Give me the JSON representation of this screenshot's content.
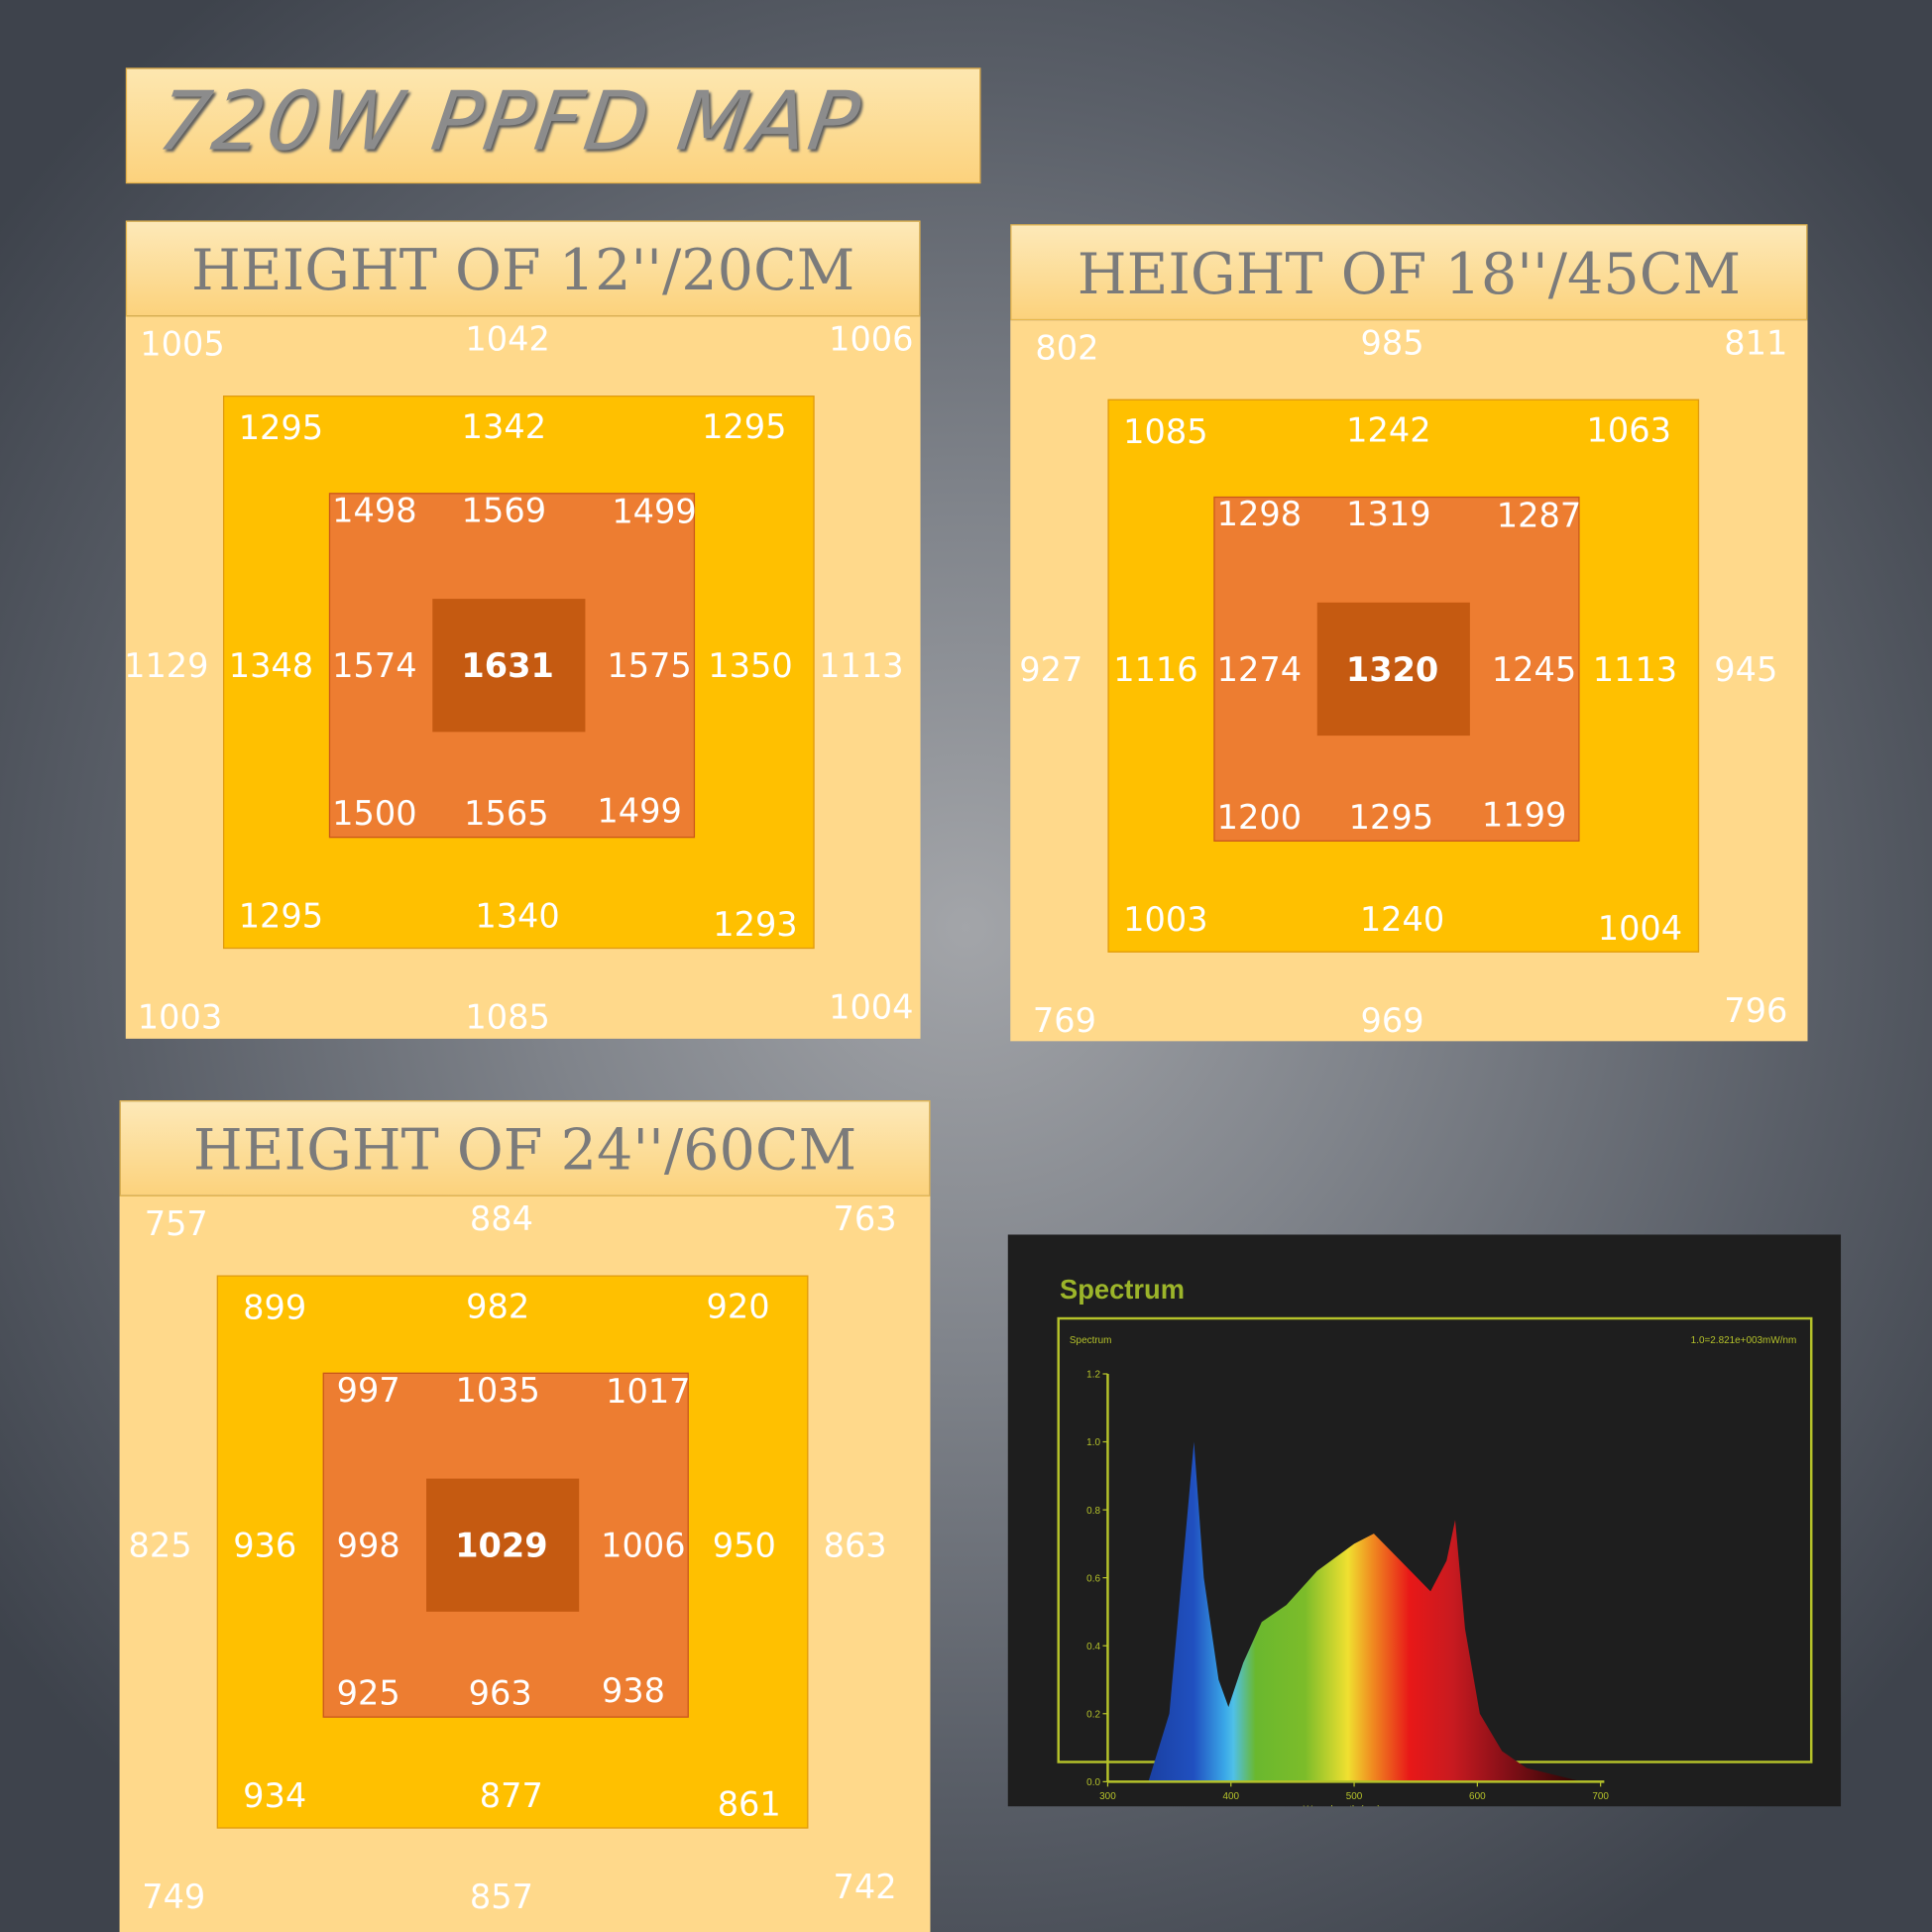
{
  "title": "720W PPFD MAP",
  "maps": [
    {
      "heading": "HEIGHT OF 12''/20CM",
      "outer": {
        "tl": "1005",
        "t": "1042",
        "tr": "1006",
        "l": "1129",
        "r": "1113",
        "bl": "1003",
        "b": "1085",
        "br": "1004"
      },
      "middle": {
        "tl": "1295",
        "t": "1342",
        "tr": "1295",
        "l": "1348",
        "r": "1350",
        "bl": "1295",
        "b": "1340",
        "br": "1293"
      },
      "inner": {
        "tl": "1498",
        "t": "1569",
        "tr": "1499",
        "l": "1574",
        "r": "1575",
        "bl": "1500",
        "b": "1565",
        "br": "1499"
      },
      "center": "1631"
    },
    {
      "heading": "HEIGHT OF 18''/45CM",
      "outer": {
        "tl": "802",
        "t": "985",
        "tr": "811",
        "l": "927",
        "r": "945",
        "bl": "769",
        "b": "969",
        "br": "796"
      },
      "middle": {
        "tl": "1085",
        "t": "1242",
        "tr": "1063",
        "l": "1116",
        "r": "1113",
        "bl": "1003",
        "b": "1240",
        "br": "1004"
      },
      "inner": {
        "tl": "1298",
        "t": "1319",
        "tr": "1287",
        "l": "1274",
        "r": "1245",
        "bl": "1200",
        "b": "1295",
        "br": "1199"
      },
      "center": "1320"
    },
    {
      "heading": "HEIGHT OF 24''/60CM",
      "outer": {
        "tl": "757",
        "t": "884",
        "tr": "763",
        "l": "825",
        "r": "863",
        "bl": "749",
        "b": "857",
        "br": "742"
      },
      "middle": {
        "tl": "899",
        "t": "982",
        "tr": "920",
        "l": "936",
        "r": "950",
        "bl": "934",
        "b": "877",
        "br": "861"
      },
      "inner": {
        "tl": "997",
        "t": "1035",
        "tr": "1017",
        "l": "998",
        "r": "1006",
        "bl": "925",
        "b": "963",
        "br": "938"
      },
      "center": "1029"
    }
  ],
  "colors": {
    "outer": "#ffd98b",
    "middle": "#ffc000",
    "inner": "#ed7d31",
    "center": "#c55a11"
  },
  "chart_data": {
    "type": "area",
    "title": "Spectrum",
    "subtitle": "Spectrum",
    "annotation": "1.0=2.821e+003mW/nm",
    "xlabel": "Wave length (nm)",
    "ylabel": "",
    "xlim": [
      300,
      700
    ],
    "ylim": [
      0,
      1.2
    ],
    "xticks": [
      "300",
      "400",
      "500",
      "600",
      "700"
    ],
    "yticks": [
      "0.0",
      "0.2",
      "0.4",
      "0.6",
      "0.8",
      "1.0",
      "1.2"
    ],
    "x": [
      333,
      350,
      360,
      370,
      378,
      390,
      398,
      410,
      425,
      445,
      470,
      500,
      516,
      535,
      562,
      575,
      582,
      590,
      602,
      620,
      640,
      685
    ],
    "y": [
      0,
      0.2,
      0.6,
      1.0,
      0.6,
      0.3,
      0.22,
      0.35,
      0.47,
      0.52,
      0.62,
      0.7,
      0.73,
      0.66,
      0.56,
      0.65,
      0.77,
      0.45,
      0.2,
      0.09,
      0.04,
      0
    ],
    "grid": false,
    "fill": "wavelength-color gradient",
    "colors": {
      "background": "#1e1e1e",
      "axis": "#b5c22a"
    }
  }
}
